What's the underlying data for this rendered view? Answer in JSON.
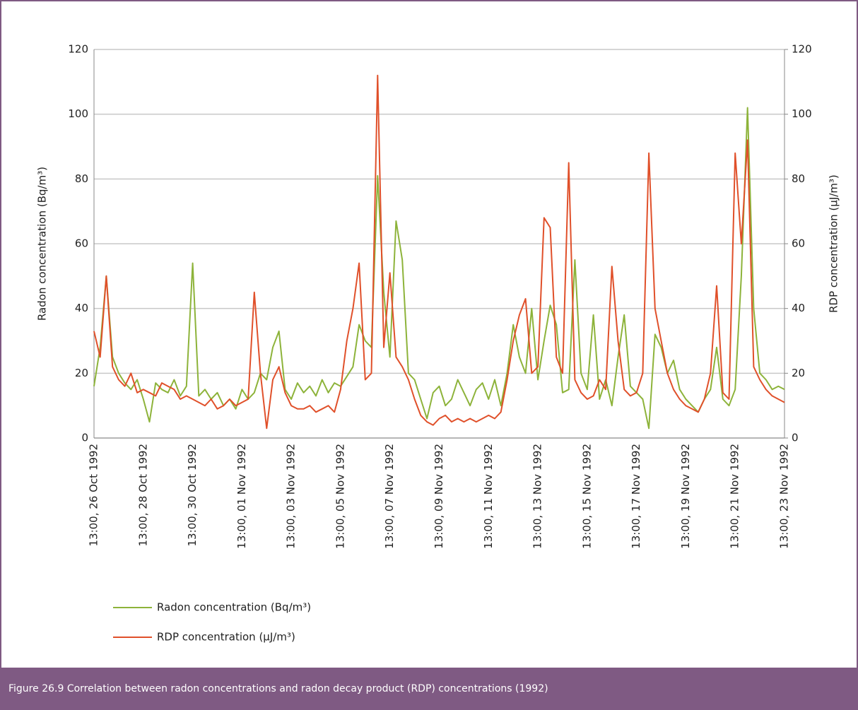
{
  "chart_data": {
    "type": "line",
    "caption": "Figure 26.9  Correlation between radon concentrations and radon decay product (RDP) concentrations (1992)",
    "ylabel": "Radon concentration (Bq/m³)",
    "y2label": "RDP concentration (µJ/m³)",
    "categories": [
      "13:00, 26 Oct 1992",
      null,
      null,
      null,
      null,
      null,
      null,
      null,
      "13:00, 28 Oct 1992",
      null,
      null,
      null,
      null,
      null,
      null,
      null,
      "13:00, 30 Oct 1992",
      null,
      null,
      null,
      null,
      null,
      null,
      null,
      "13:00, 01 Nov 1992",
      null,
      null,
      null,
      null,
      null,
      null,
      null,
      "13:00, 03 Nov 1992",
      null,
      null,
      null,
      null,
      null,
      null,
      null,
      "13:00, 05 Nov 1992",
      null,
      null,
      null,
      null,
      null,
      null,
      null,
      "13:00, 07 Nov 1992",
      null,
      null,
      null,
      null,
      null,
      null,
      null,
      "13:00, 09 Nov 1992",
      null,
      null,
      null,
      null,
      null,
      null,
      null,
      "13:00, 11 Nov 1992",
      null,
      null,
      null,
      null,
      null,
      null,
      null,
      "13:00, 13 Nov 1992",
      null,
      null,
      null,
      null,
      null,
      null,
      null,
      "13:00, 15 Nov 1992",
      null,
      null,
      null,
      null,
      null,
      null,
      null,
      "13:00, 17 Nov 1992",
      null,
      null,
      null,
      null,
      null,
      null,
      null,
      "13:00, 19 Nov 1992",
      null,
      null,
      null,
      null,
      null,
      null,
      null,
      "13:00, 21 Nov 1992",
      null,
      null,
      null,
      null,
      null,
      null,
      null,
      "13:00, 23 Nov 1992"
    ],
    "series": [
      {
        "name": "Radon concentration (Bq/m³)",
        "color": "#8db33a",
        "axis": "y",
        "values": [
          16,
          28,
          50,
          25,
          20,
          17,
          15,
          18,
          12,
          5,
          17,
          15,
          14,
          18,
          13,
          16,
          54,
          13,
          15,
          12,
          14,
          10,
          12,
          9,
          15,
          12,
          14,
          20,
          18,
          28,
          33,
          15,
          12,
          17,
          14,
          16,
          13,
          18,
          14,
          17,
          16,
          19,
          22,
          35,
          30,
          28,
          81,
          45,
          25,
          67,
          55,
          20,
          18,
          12,
          6,
          14,
          16,
          10,
          12,
          18,
          14,
          10,
          15,
          17,
          12,
          18,
          10,
          20,
          35,
          25,
          20,
          40,
          18,
          30,
          41,
          35,
          14,
          15,
          55,
          20,
          15,
          38,
          12,
          18,
          10,
          25,
          38,
          16,
          14,
          12,
          3,
          32,
          28,
          20,
          24,
          15,
          12,
          10,
          8,
          12,
          15,
          28,
          12,
          10,
          15,
          50,
          102,
          40,
          20,
          18,
          15,
          16,
          15
        ]
      },
      {
        "name": "RDP concentration (µJ/m³)",
        "color": "#e0502a",
        "axis": "y2",
        "values": [
          33,
          25,
          50,
          22,
          18,
          16,
          20,
          14,
          15,
          14,
          13,
          17,
          16,
          15,
          12,
          13,
          12,
          11,
          10,
          12,
          9,
          10,
          12,
          10,
          11,
          12,
          45,
          20,
          3,
          18,
          22,
          14,
          10,
          9,
          9,
          10,
          8,
          9,
          10,
          8,
          15,
          30,
          40,
          54,
          18,
          20,
          112,
          28,
          51,
          25,
          22,
          18,
          12,
          7,
          5,
          4,
          6,
          7,
          5,
          6,
          5,
          6,
          5,
          6,
          7,
          6,
          8,
          18,
          30,
          38,
          43,
          20,
          22,
          68,
          65,
          25,
          20,
          85,
          18,
          14,
          12,
          13,
          18,
          15,
          53,
          30,
          15,
          13,
          14,
          20,
          88,
          40,
          30,
          20,
          15,
          12,
          10,
          9,
          8,
          12,
          20,
          47,
          14,
          12,
          88,
          60,
          92,
          22,
          18,
          15,
          13,
          12,
          11
        ]
      }
    ],
    "ylim": [
      0,
      120
    ],
    "yticks": [
      0,
      20,
      40,
      60,
      80,
      100,
      120
    ],
    "y2lim": [
      0,
      120
    ],
    "y2ticks": [
      0,
      20,
      40,
      60,
      80,
      100,
      120
    ],
    "grid": true
  }
}
